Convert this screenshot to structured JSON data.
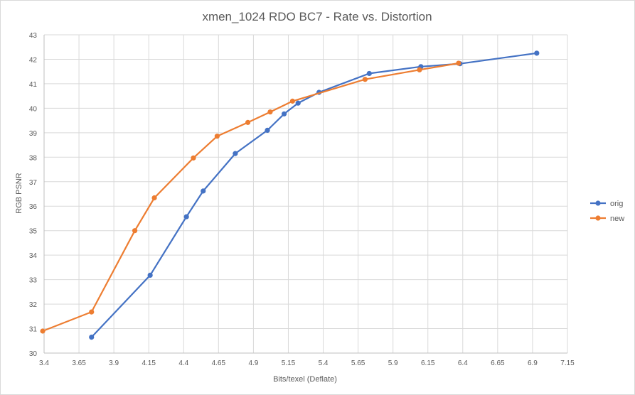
{
  "chart_data": {
    "type": "scatter",
    "title": "xmen_1024 RDO BC7 - Rate vs. Distortion",
    "xlabel": "Bits/texel (Deflate)",
    "ylabel": "RGB PSNR",
    "xlim": [
      3.4,
      7.15
    ],
    "ylim": [
      30,
      43
    ],
    "x_ticks": [
      "3.4",
      "3.65",
      "3.9",
      "4.15",
      "4.4",
      "4.65",
      "4.9",
      "5.15",
      "5.4",
      "5.65",
      "5.9",
      "6.15",
      "6.4",
      "6.65",
      "6.9",
      "7.15"
    ],
    "y_ticks": [
      "30",
      "31",
      "32",
      "33",
      "34",
      "35",
      "36",
      "37",
      "38",
      "39",
      "40",
      "41",
      "42",
      "43"
    ],
    "grid": true,
    "legend_position": "right",
    "series": [
      {
        "name": "orig",
        "color": "#4472C4",
        "points": [
          [
            3.74,
            30.65
          ],
          [
            4.16,
            33.18
          ],
          [
            4.42,
            35.57
          ],
          [
            4.54,
            36.62
          ],
          [
            4.77,
            38.15
          ],
          [
            5.0,
            39.1
          ],
          [
            5.12,
            39.77
          ],
          [
            5.22,
            40.21
          ],
          [
            5.37,
            40.65
          ],
          [
            5.73,
            41.42
          ],
          [
            6.1,
            41.7
          ],
          [
            6.38,
            41.82
          ],
          [
            6.93,
            42.25
          ]
        ]
      },
      {
        "name": "new",
        "color": "#ED7D31",
        "points": [
          [
            3.39,
            30.9
          ],
          [
            3.74,
            31.68
          ],
          [
            4.05,
            35.0
          ],
          [
            4.19,
            36.34
          ],
          [
            4.47,
            37.97
          ],
          [
            4.64,
            38.86
          ],
          [
            4.86,
            39.42
          ],
          [
            5.02,
            39.85
          ],
          [
            5.18,
            40.29
          ],
          [
            5.7,
            41.18
          ],
          [
            6.09,
            41.57
          ],
          [
            6.37,
            41.84
          ]
        ]
      }
    ]
  }
}
